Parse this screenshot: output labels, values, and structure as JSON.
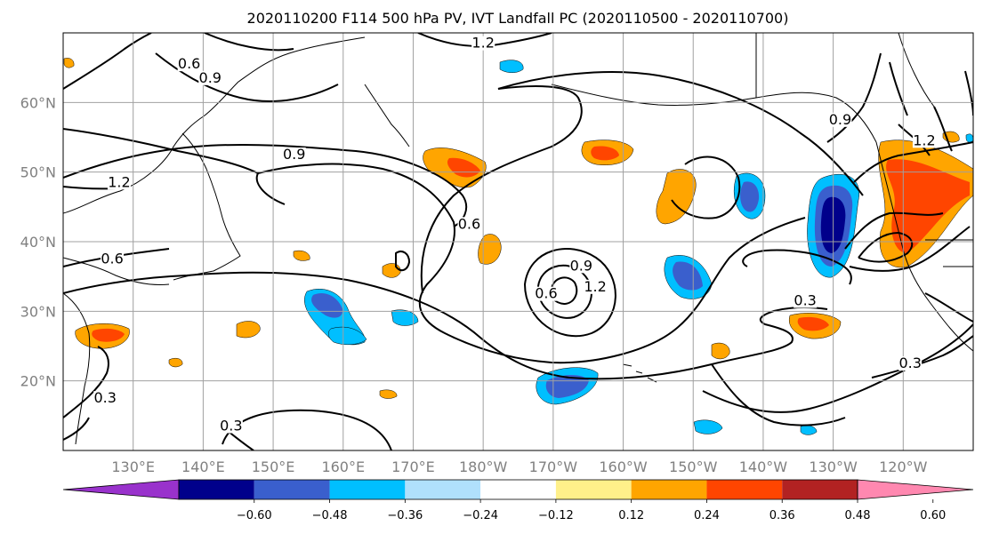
{
  "chart_data": {
    "type": "heatmap",
    "title": "2020110200 F114 500 hPa PV, IVT Landfall PC (2020110500 - 2020110700)",
    "projection": "map",
    "x_ticks": [
      "130°E",
      "140°E",
      "150°E",
      "160°E",
      "170°E",
      "180°W",
      "170°W",
      "160°W",
      "150°W",
      "140°W",
      "130°W",
      "120°W"
    ],
    "x_tick_lon": [
      130,
      140,
      150,
      160,
      170,
      180,
      190,
      200,
      210,
      220,
      230,
      240
    ],
    "y_ticks": [
      "20°N",
      "30°N",
      "40°N",
      "50°N",
      "60°N"
    ],
    "y_tick_lat": [
      20,
      30,
      40,
      50,
      60
    ],
    "xlim_lon": [
      120,
      250
    ],
    "ylim_lat": [
      10,
      70
    ],
    "grid": true,
    "colorbar": {
      "orientation": "horizontal",
      "extend": "both",
      "ticks": [
        "-0.60",
        "-0.48",
        "-0.36",
        "-0.24",
        "-0.12",
        "0.12",
        "0.24",
        "0.36",
        "0.48",
        "0.60"
      ],
      "tick_values": [
        -0.6,
        -0.48,
        -0.36,
        -0.24,
        -0.12,
        0.12,
        0.24,
        0.36,
        0.48,
        0.6
      ],
      "colors": [
        "#9932cc",
        "#00008b",
        "#3a5fcd",
        "#00bfff",
        "#b0e0fc",
        "#ffffff",
        "#fff08a",
        "#ffa500",
        "#ff4500",
        "#b22222",
        "#ff88b0"
      ]
    },
    "contour_labels": [
      {
        "text": "1.2",
        "lon": 196,
        "lat": 33
      },
      {
        "text": "0.9",
        "lon": 194,
        "lat": 36
      },
      {
        "text": "0.6",
        "lon": 189,
        "lat": 32
      },
      {
        "text": "0.3",
        "lon": 226,
        "lat": 31
      },
      {
        "text": "0.3",
        "lon": 241,
        "lat": 22
      },
      {
        "text": "0.9",
        "lon": 153,
        "lat": 52
      },
      {
        "text": "1.2",
        "lon": 128,
        "lat": 48
      },
      {
        "text": "0.6",
        "lon": 127,
        "lat": 37
      },
      {
        "text": "0.6",
        "lon": 178,
        "lat": 42
      },
      {
        "text": "0.9",
        "lon": 141,
        "lat": 63
      },
      {
        "text": "0.6",
        "lon": 138,
        "lat": 65
      },
      {
        "text": "1.2",
        "lon": 180,
        "lat": 68
      },
      {
        "text": "0.9",
        "lon": 231,
        "lat": 57
      },
      {
        "text": "1.2",
        "lon": 243,
        "lat": 54
      },
      {
        "text": "0.3",
        "lon": 126,
        "lat": 17
      },
      {
        "text": "0.3",
        "lon": 144,
        "lat": 13
      }
    ]
  }
}
